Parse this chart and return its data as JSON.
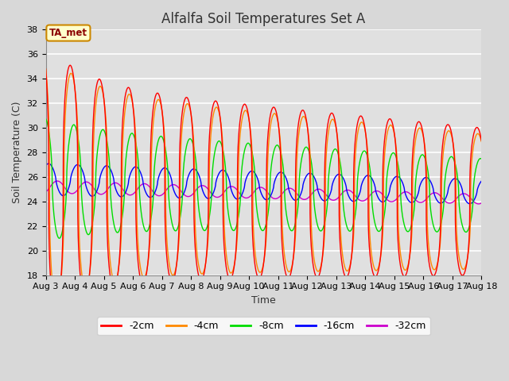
{
  "title": "Alfalfa Soil Temperatures Set A",
  "xlabel": "Time",
  "ylabel": "Soil Temperature (C)",
  "ylim": [
    18,
    38
  ],
  "xlim": [
    0,
    15
  ],
  "xtick_labels": [
    "Aug 3",
    "Aug 4",
    "Aug 5",
    "Aug 6",
    "Aug 7",
    "Aug 8",
    "Aug 9",
    "Aug 10",
    "Aug 11",
    "Aug 12",
    "Aug 13",
    "Aug 14",
    "Aug 15",
    "Aug 16",
    "Aug 17",
    "Aug 18"
  ],
  "xtick_positions": [
    0,
    1,
    2,
    3,
    4,
    5,
    6,
    7,
    8,
    9,
    10,
    11,
    12,
    13,
    14,
    15
  ],
  "plot_bg_color": "#e0e0e0",
  "fig_bg_color": "#d8d8d8",
  "grid_color": "#ffffff",
  "line_colors": {
    "-2cm": "#ff0000",
    "-4cm": "#ff8800",
    "-8cm": "#00dd00",
    "-16cm": "#0000ff",
    "-32cm": "#cc00cc"
  },
  "annotation_text": "TA_met",
  "title_fontsize": 12,
  "axis_label_fontsize": 9,
  "tick_fontsize": 8,
  "legend_fontsize": 9
}
